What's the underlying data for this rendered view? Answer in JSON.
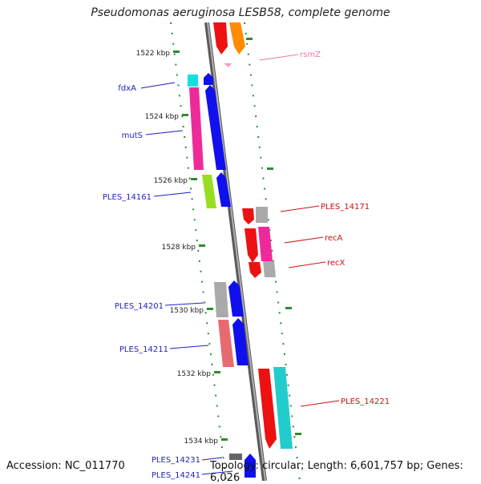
{
  "title": "Pseudomonas aeruginosa LESB58, complete genome",
  "footer": {
    "accession": "Accession: NC_011770",
    "topology": "Topology: circular; Length: 6,601,757 bp; Genes: 6,026"
  },
  "colors": {
    "backbone": "#8a8a8a",
    "tick": "#2e8b2e",
    "label_left": "#1f1fbf",
    "label_right": "#cc1111",
    "label_rna": "#e87aa8"
  },
  "ticks": [
    {
      "label": "1522 kbp"
    },
    {
      "label": "1524 kbp"
    },
    {
      "label": "1526 kbp"
    },
    {
      "label": "1528 kbp"
    },
    {
      "label": "1530 kbp"
    },
    {
      "label": "1532 kbp"
    },
    {
      "label": "1534 kbp"
    }
  ],
  "gene_labels": [
    {
      "text": "rsmZ",
      "side": "right",
      "kind": "rna"
    },
    {
      "text": "fdxA",
      "side": "left"
    },
    {
      "text": "mutS",
      "side": "left"
    },
    {
      "text": "PLES_14161",
      "side": "left"
    },
    {
      "text": "PLES_14171",
      "side": "right"
    },
    {
      "text": "recA",
      "side": "right"
    },
    {
      "text": "recX",
      "side": "right"
    },
    {
      "text": "PLES_14201",
      "side": "left"
    },
    {
      "text": "PLES_14211",
      "side": "left"
    },
    {
      "text": "PLES_14221",
      "side": "right"
    },
    {
      "text": "PLES_14231",
      "side": "left"
    },
    {
      "text": "PLES_14241",
      "side": "left"
    }
  ]
}
